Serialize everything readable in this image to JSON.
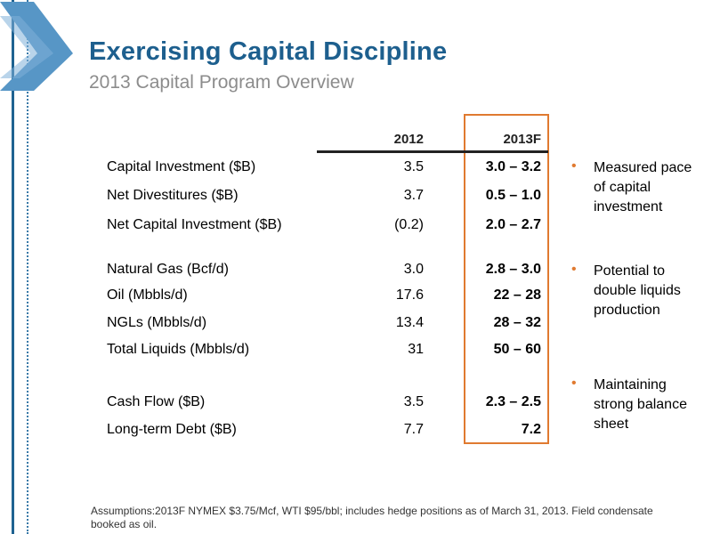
{
  "header": {
    "title": "Exercising Capital Discipline",
    "subtitle": "2013 Capital Program Overview"
  },
  "table": {
    "col_2012": "2012",
    "col_2013f": "2013F",
    "rows": [
      {
        "label": "Capital Investment ($B)",
        "v2012": "3.5",
        "v2013f": "3.0 – 3.2"
      },
      {
        "label": "Net Divestitures ($B)",
        "v2012": "3.7",
        "v2013f": "0.5 – 1.0"
      },
      {
        "label": "Net Capital Investment ($B)",
        "v2012": "(0.2)",
        "v2013f": "2.0 – 2.7"
      },
      {
        "label": "Natural Gas (Bcf/d)",
        "v2012": "3.0",
        "v2013f": "2.8 – 3.0"
      },
      {
        "label": "Oil (Mbbls/d)",
        "v2012": "17.6",
        "v2013f": "22 – 28"
      },
      {
        "label": "NGLs (Mbbls/d)",
        "v2012": "13.4",
        "v2013f": "28 – 32"
      },
      {
        "label": "Total Liquids (Mbbls/d)",
        "v2012": "31",
        "v2013f": "50 – 60"
      },
      {
        "label": "Cash Flow ($B)",
        "v2012": "3.5",
        "v2013f": "2.3 – 2.5"
      },
      {
        "label": "Long-term Debt ($B)",
        "v2012": "7.7",
        "v2013f": "7.2"
      }
    ]
  },
  "bullets": [
    {
      "marker": "•",
      "text": "Measured pace of capital investment"
    },
    {
      "marker": "•",
      "text": "Potential to double liquids production"
    },
    {
      "marker": "•",
      "text": "Maintaining strong balance sheet"
    }
  ],
  "footnote": "Assumptions:2013F NYMEX $3.75/Mcf, WTI $95/bbl; includes hedge positions as of March 31, 2013. Field condensate booked as oil.",
  "colors": {
    "title": "#1d5f8e",
    "subtitle": "#8c8c8c",
    "highlight_border": "#e07a30",
    "bullet_marker": "#e07a30",
    "accent_blue": "#3a7fb3"
  }
}
